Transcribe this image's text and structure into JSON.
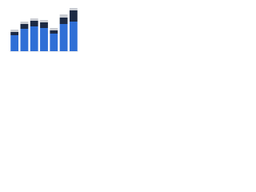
{
  "chart_data": {
    "type": "stacked-bar",
    "categories": [
      null,
      null,
      null,
      null,
      null,
      null,
      null
    ],
    "series": [
      {
        "color": "#2f6fd6",
        "values": [
          20,
          28,
          31,
          29,
          22,
          34,
          37
        ]
      },
      {
        "color": "#1c2a44",
        "values": [
          4,
          6,
          7,
          7,
          4,
          8,
          14
        ]
      },
      {
        "color": "#c9ccd2",
        "values": [
          3,
          3,
          3,
          3,
          3,
          4,
          3
        ]
      }
    ]
  }
}
